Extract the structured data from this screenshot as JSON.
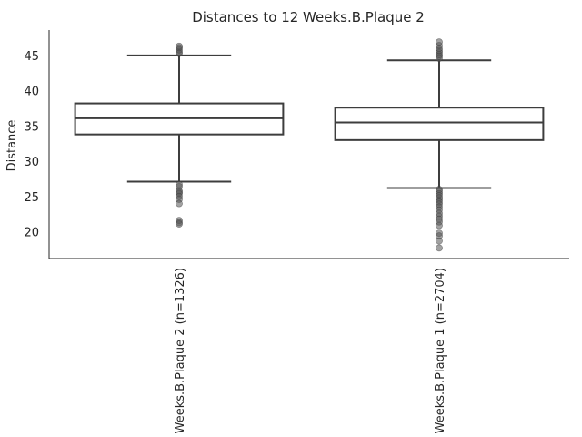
{
  "chart_data": {
    "type": "box",
    "title": "Distances to 12 Weeks.B.Plaque 2",
    "xlabel": "",
    "ylabel": "Distance",
    "ylim": [
      16.2,
      48.6
    ],
    "yticks": [
      20,
      25,
      30,
      35,
      40,
      45
    ],
    "grid": false,
    "categories": [
      "12 Weeks.B.Plaque 2 (n=1326)",
      "12 Weeks.B.Plaque 1 (n=2704)"
    ],
    "boxes": [
      {
        "q1": 33.8,
        "median": 36.1,
        "q3": 38.2,
        "whisker_low": 27.1,
        "whisker_high": 45.0,
        "outliers": [
          45.3,
          45.5,
          45.8,
          46.1,
          46.3,
          26.7,
          26.4,
          25.8,
          25.6,
          25.4,
          25.0,
          24.6,
          24.0,
          21.6,
          21.3,
          21.1
        ]
      },
      {
        "q1": 33.0,
        "median": 35.5,
        "q3": 37.6,
        "whisker_low": 26.2,
        "whisker_high": 44.3,
        "outliers": [
          44.6,
          44.9,
          45.1,
          45.4,
          45.7,
          46.0,
          46.4,
          46.9,
          26.0,
          25.7,
          25.4,
          25.1,
          24.8,
          24.5,
          24.2,
          23.9,
          23.5,
          23.1,
          22.6,
          22.2,
          21.8,
          21.4,
          20.9,
          19.8,
          19.4,
          18.7,
          17.7
        ]
      }
    ]
  }
}
